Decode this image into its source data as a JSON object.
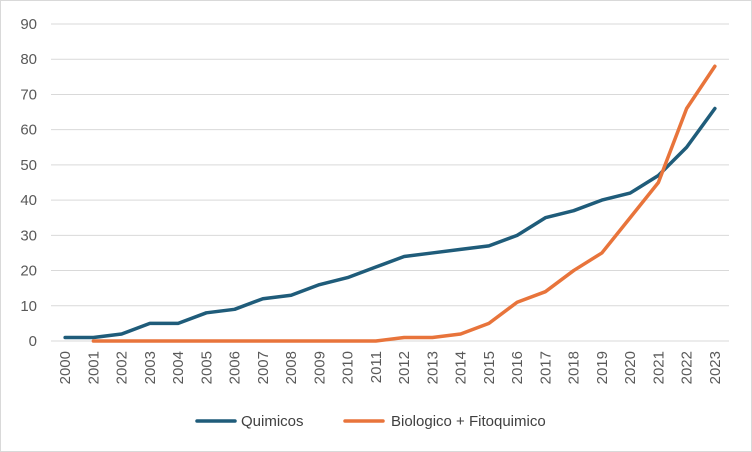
{
  "chart_data": {
    "type": "line",
    "title": "",
    "xlabel": "",
    "ylabel": "",
    "ylim": [
      0,
      90
    ],
    "ytick_step": 10,
    "grid": true,
    "legend_position": "bottom",
    "categories": [
      "2000",
      "2001",
      "2002",
      "2003",
      "2004",
      "2005",
      "2006",
      "2007",
      "2008",
      "2009",
      "2010",
      "2011",
      "2012",
      "2013",
      "2014",
      "2015",
      "2016",
      "2017",
      "2018",
      "2019",
      "2020",
      "2021",
      "2022",
      "2023"
    ],
    "series": [
      {
        "name": "Quimicos",
        "color": "#1f5c7a",
        "values": [
          1,
          1,
          2,
          5,
          5,
          8,
          9,
          12,
          13,
          16,
          18,
          21,
          24,
          25,
          26,
          27,
          30,
          35,
          37,
          40,
          42,
          47,
          55,
          66
        ]
      },
      {
        "name": "Biologico + Fitoquimico",
        "color": "#e8743b",
        "values": [
          null,
          0,
          0,
          0,
          0,
          0,
          0,
          0,
          0,
          0,
          0,
          0,
          1,
          1,
          2,
          5,
          11,
          14,
          20,
          25,
          35,
          45,
          66,
          78
        ]
      }
    ]
  }
}
